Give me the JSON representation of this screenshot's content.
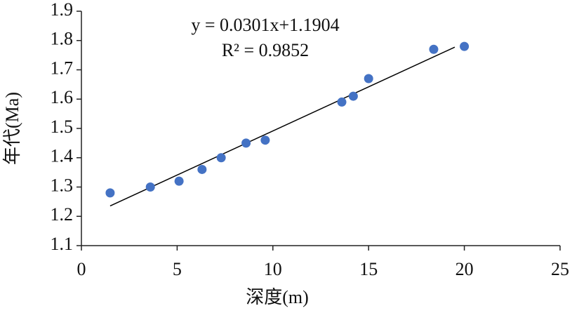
{
  "chart_data": {
    "type": "scatter",
    "x_label": "深度(m)",
    "y_label": "年代(Ma)",
    "annotations": [
      "y = 0.0301x+1.1904",
      "R² = 0.9852"
    ],
    "x": [
      1.5,
      3.6,
      5.1,
      6.3,
      7.3,
      8.6,
      9.6,
      13.6,
      14.2,
      15.0,
      18.4,
      20.0
    ],
    "series": [
      {
        "color": "#4472c4",
        "values": [
          1.28,
          1.3,
          1.32,
          1.36,
          1.4,
          1.45,
          1.46,
          1.59,
          1.61,
          1.67,
          1.77,
          1.78
        ]
      }
    ],
    "trendline": {
      "slope": 0.0301,
      "intercept": 1.1904,
      "x_range": [
        1.5,
        19.5
      ],
      "color": "#000000"
    },
    "xlim": [
      0,
      25
    ],
    "xticks": [
      0,
      5,
      10,
      15,
      20,
      25
    ],
    "ylim": [
      1.1,
      1.9
    ],
    "yticks": [
      1.1,
      1.2,
      1.3,
      1.4,
      1.5,
      1.6,
      1.7,
      1.8,
      1.9
    ],
    "grid": false
  }
}
